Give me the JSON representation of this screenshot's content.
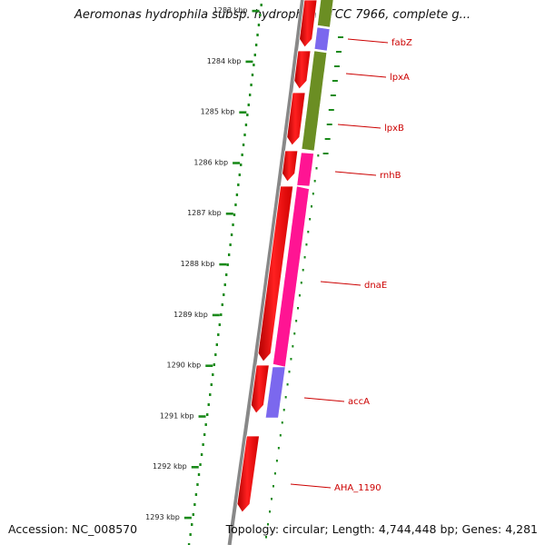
{
  "title": "Aeromonas hydrophila subsp. hydrophila ATCC 7966, complete g...",
  "footer": {
    "accession": "Accession: NC_008570",
    "summary": "Topology: circular; Length: 4,744,448 bp; Genes: 4,281"
  },
  "colors": {
    "backbone": "#888888",
    "forward_gene": "#ff0000",
    "tick": "#1a8a1a",
    "label": "#cc0000",
    "cog_olive": "#6b8e23",
    "cog_purple": "#7b68ee",
    "cog_pink": "#ff1493"
  },
  "scale_labels": [
    "1283 kbp",
    "1284 kbp",
    "1285 kbp",
    "1286 kbp",
    "1287 kbp",
    "1288 kbp",
    "1289 kbp",
    "1290 kbp",
    "1291 kbp",
    "1292 kbp",
    "1293 kbp"
  ],
  "gene_labels": [
    "fabZ",
    "lpxA",
    "lpxB",
    "rnhB",
    "dnaE",
    "accA",
    "AHA_1190"
  ],
  "cog_segments": [
    {
      "category": "olive",
      "color": "#6b8e23"
    },
    {
      "category": "purple",
      "color": "#7b68ee"
    },
    {
      "category": "pink",
      "color": "#ff1493"
    },
    {
      "category": "purple",
      "color": "#7b68ee"
    }
  ]
}
